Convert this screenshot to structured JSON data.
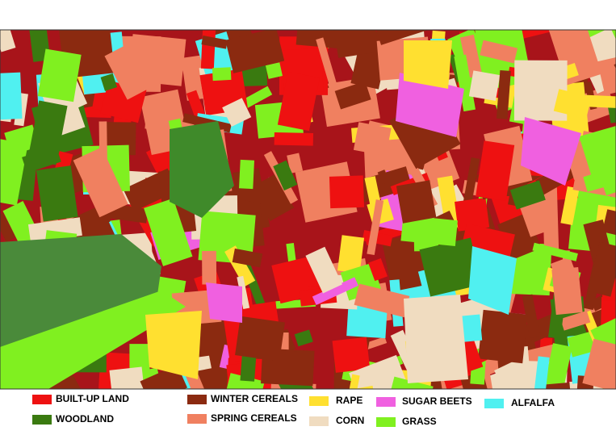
{
  "legend": {
    "items": [
      {
        "label": "BUILT-UP LAND",
        "color": "#ee1111"
      },
      {
        "label": "WOODLAND",
        "color": "#3a7a10"
      },
      {
        "label": "WINTER CEREALS",
        "color": "#8b2a10"
      },
      {
        "label": "SPRING CEREALS",
        "color": "#f08060"
      },
      {
        "label": "RAPE",
        "color": "#ffe030"
      },
      {
        "label": "CORN",
        "color": "#f0dcc0"
      },
      {
        "label": "SUGAR BEETS",
        "color": "#f060e0"
      },
      {
        "label": "GRASS",
        "color": "#80f020"
      },
      {
        "label": "ALFALFA",
        "color": "#50f0f0"
      }
    ]
  }
}
